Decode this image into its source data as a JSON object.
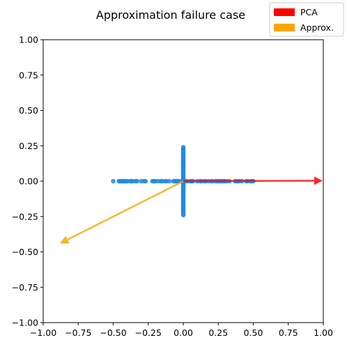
{
  "chart_data": {
    "type": "scatter",
    "title": "Approximation failure case",
    "xlabel": "",
    "ylabel": "",
    "xlim": [
      -1.0,
      1.0
    ],
    "ylim": [
      -1.0,
      1.0
    ],
    "grid": false,
    "x_ticks": [
      -1.0,
      -0.75,
      -0.5,
      -0.25,
      0.0,
      0.25,
      0.5,
      0.75,
      1.0
    ],
    "y_ticks": [
      -1.0,
      -0.75,
      -0.5,
      -0.25,
      0.0,
      0.25,
      0.5,
      0.75,
      1.0
    ],
    "x_tick_labels": [
      "−1.00",
      "−0.75",
      "−0.50",
      "−0.25",
      "0.00",
      "0.25",
      "0.50",
      "0.75",
      "1.00"
    ],
    "y_tick_labels": [
      "−1.00",
      "−0.75",
      "−0.50",
      "−0.25",
      "0.00",
      "0.25",
      "0.50",
      "0.75",
      "1.00"
    ],
    "legend": {
      "placement": "top-right",
      "entries": [
        {
          "label": "PCA",
          "color": "#ff0000"
        },
        {
          "label": "Approx.",
          "color": "#ffa500"
        }
      ]
    },
    "points_color": "#1e88e5",
    "points": [
      {
        "x": -0.5,
        "y": 0
      },
      {
        "x": -0.46,
        "y": 0
      },
      {
        "x": -0.45,
        "y": 0
      },
      {
        "x": -0.44,
        "y": 0
      },
      {
        "x": -0.43,
        "y": 0
      },
      {
        "x": -0.42,
        "y": 0
      },
      {
        "x": -0.41,
        "y": 0
      },
      {
        "x": -0.4,
        "y": 0
      },
      {
        "x": -0.38,
        "y": 0
      },
      {
        "x": -0.37,
        "y": 0
      },
      {
        "x": -0.36,
        "y": 0
      },
      {
        "x": -0.34,
        "y": 0
      },
      {
        "x": -0.33,
        "y": 0
      },
      {
        "x": -0.3,
        "y": 0
      },
      {
        "x": -0.28,
        "y": 0
      },
      {
        "x": -0.27,
        "y": 0
      },
      {
        "x": -0.22,
        "y": 0
      },
      {
        "x": -0.21,
        "y": 0
      },
      {
        "x": -0.2,
        "y": 0
      },
      {
        "x": -0.18,
        "y": 0
      },
      {
        "x": -0.16,
        "y": 0
      },
      {
        "x": -0.15,
        "y": 0
      },
      {
        "x": -0.13,
        "y": 0
      },
      {
        "x": -0.12,
        "y": 0
      },
      {
        "x": -0.1,
        "y": 0
      },
      {
        "x": -0.07,
        "y": 0
      },
      {
        "x": -0.06,
        "y": 0
      },
      {
        "x": -0.05,
        "y": 0
      },
      {
        "x": -0.04,
        "y": 0
      },
      {
        "x": -0.03,
        "y": 0
      },
      {
        "x": -0.01,
        "y": 0
      },
      {
        "x": 0.02,
        "y": 0
      },
      {
        "x": 0.03,
        "y": 0
      },
      {
        "x": 0.05,
        "y": 0
      },
      {
        "x": 0.06,
        "y": 0
      },
      {
        "x": 0.07,
        "y": 0
      },
      {
        "x": 0.1,
        "y": 0
      },
      {
        "x": 0.12,
        "y": 0
      },
      {
        "x": 0.13,
        "y": 0
      },
      {
        "x": 0.15,
        "y": 0
      },
      {
        "x": 0.16,
        "y": 0
      },
      {
        "x": 0.18,
        "y": 0
      },
      {
        "x": 0.2,
        "y": 0
      },
      {
        "x": 0.21,
        "y": 0
      },
      {
        "x": 0.23,
        "y": 0
      },
      {
        "x": 0.24,
        "y": 0
      },
      {
        "x": 0.25,
        "y": 0
      },
      {
        "x": 0.26,
        "y": 0
      },
      {
        "x": 0.27,
        "y": 0
      },
      {
        "x": 0.28,
        "y": 0
      },
      {
        "x": 0.29,
        "y": 0
      },
      {
        "x": 0.3,
        "y": 0
      },
      {
        "x": 0.31,
        "y": 0
      },
      {
        "x": 0.33,
        "y": 0
      },
      {
        "x": 0.37,
        "y": 0
      },
      {
        "x": 0.38,
        "y": 0
      },
      {
        "x": 0.39,
        "y": 0
      },
      {
        "x": 0.4,
        "y": 0
      },
      {
        "x": 0.42,
        "y": 0
      },
      {
        "x": 0.45,
        "y": 0
      },
      {
        "x": 0.46,
        "y": 0
      },
      {
        "x": 0.48,
        "y": 0
      },
      {
        "x": 0.49,
        "y": 0
      },
      {
        "x": 0.5,
        "y": 0
      },
      {
        "x": 0,
        "y": 0.24
      },
      {
        "x": 0,
        "y": 0.23
      },
      {
        "x": 0,
        "y": 0.22
      },
      {
        "x": 0,
        "y": 0.21
      },
      {
        "x": 0,
        "y": 0.2
      },
      {
        "x": 0,
        "y": 0.19
      },
      {
        "x": 0,
        "y": 0.18
      },
      {
        "x": 0,
        "y": 0.17
      },
      {
        "x": 0,
        "y": 0.16
      },
      {
        "x": 0,
        "y": 0.15
      },
      {
        "x": 0,
        "y": 0.14
      },
      {
        "x": 0,
        "y": 0.13
      },
      {
        "x": 0,
        "y": 0.12
      },
      {
        "x": 0,
        "y": 0.11
      },
      {
        "x": 0,
        "y": 0.1
      },
      {
        "x": 0,
        "y": 0.09
      },
      {
        "x": 0,
        "y": 0.08
      },
      {
        "x": 0,
        "y": 0.07
      },
      {
        "x": 0,
        "y": 0.06
      },
      {
        "x": 0,
        "y": 0.05
      },
      {
        "x": 0,
        "y": 0.04
      },
      {
        "x": 0,
        "y": 0.03
      },
      {
        "x": 0,
        "y": 0.02
      },
      {
        "x": 0,
        "y": 0.01
      },
      {
        "x": 0,
        "y": -0.01
      },
      {
        "x": 0,
        "y": -0.02
      },
      {
        "x": 0,
        "y": -0.03
      },
      {
        "x": 0,
        "y": -0.04
      },
      {
        "x": 0,
        "y": -0.05
      },
      {
        "x": 0,
        "y": -0.06
      },
      {
        "x": 0,
        "y": -0.07
      },
      {
        "x": 0,
        "y": -0.08
      },
      {
        "x": 0,
        "y": -0.09
      },
      {
        "x": 0,
        "y": -0.1
      },
      {
        "x": 0,
        "y": -0.11
      },
      {
        "x": 0,
        "y": -0.12
      },
      {
        "x": 0,
        "y": -0.13
      },
      {
        "x": 0,
        "y": -0.14
      },
      {
        "x": 0,
        "y": -0.15
      },
      {
        "x": 0,
        "y": -0.16
      },
      {
        "x": 0,
        "y": -0.17
      },
      {
        "x": 0,
        "y": -0.18
      },
      {
        "x": 0,
        "y": -0.19
      },
      {
        "x": 0,
        "y": -0.2
      },
      {
        "x": 0,
        "y": -0.21
      },
      {
        "x": 0,
        "y": -0.22
      },
      {
        "x": 0,
        "y": -0.23
      },
      {
        "x": 0,
        "y": -0.24
      }
    ],
    "arrows": [
      {
        "label": "PCA",
        "color": "#ff0000",
        "from": [
          0,
          0
        ],
        "to": [
          0.995,
          0.003
        ]
      },
      {
        "label": "Approx.",
        "color": "#ffa500",
        "from": [
          0,
          0
        ],
        "to": [
          -0.88,
          -0.44
        ]
      }
    ]
  }
}
